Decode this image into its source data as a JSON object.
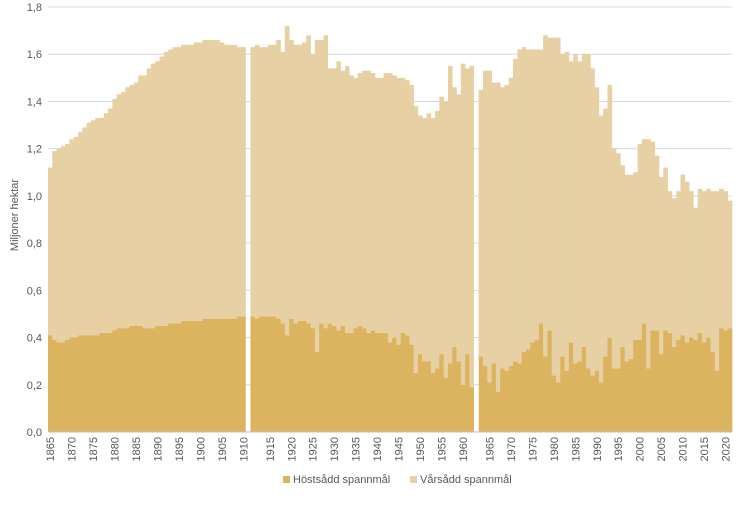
{
  "colors": {
    "host": "#DCB45F",
    "var": "#E6D0A4",
    "grid": "#D9D9D9",
    "axis": "#BFBFBF",
    "text": "#595959"
  },
  "chart_data": {
    "type": "bar",
    "stacked": true,
    "title": "",
    "xlabel": "",
    "ylabel": "Miljoner hektar",
    "ylim": [
      0,
      1.8
    ],
    "y_ticks": [
      "0,0",
      "0,2",
      "0,4",
      "0,6",
      "0,8",
      "1,0",
      "1,2",
      "1,4",
      "1,6",
      "1,8"
    ],
    "x_tick_labels": [
      "1865",
      "1870",
      "1875",
      "1880",
      "1885",
      "1890",
      "1895",
      "1900",
      "1905",
      "1910",
      "1915",
      "1920",
      "1925",
      "1930",
      "1935",
      "1940",
      "1945",
      "1950",
      "1955",
      "1960",
      "1965",
      "1970",
      "1975",
      "1980",
      "1985",
      "1990",
      "1995",
      "2000",
      "2005",
      "2010",
      "2015",
      "2020"
    ],
    "x_start": 1865,
    "x_end": 2021,
    "gaps_after": [
      1910,
      1962
    ],
    "legend_position": "bottom",
    "grid": true,
    "series": [
      {
        "name": "Höstsådd spannmål",
        "color": "#DCB45F",
        "values": [
          0.41,
          0.39,
          0.38,
          0.38,
          0.39,
          0.4,
          0.4,
          0.41,
          0.41,
          0.41,
          0.41,
          0.41,
          0.42,
          0.42,
          0.42,
          0.43,
          0.44,
          0.44,
          0.44,
          0.45,
          0.45,
          0.45,
          0.44,
          0.44,
          0.44,
          0.45,
          0.45,
          0.45,
          0.46,
          0.46,
          0.46,
          0.47,
          0.47,
          0.47,
          0.47,
          0.47,
          0.48,
          0.48,
          0.48,
          0.48,
          0.48,
          0.48,
          0.48,
          0.48,
          0.49,
          0.49,
          0.49,
          0.48,
          0.49,
          0.49,
          0.49,
          0.49,
          0.48,
          0.46,
          0.41,
          0.48,
          0.46,
          0.47,
          0.47,
          0.46,
          0.44,
          0.34,
          0.46,
          0.44,
          0.46,
          0.45,
          0.43,
          0.45,
          0.42,
          0.42,
          0.44,
          0.45,
          0.44,
          0.42,
          0.43,
          0.42,
          0.42,
          0.42,
          0.38,
          0.4,
          0.37,
          0.42,
          0.41,
          0.37,
          0.25,
          0.33,
          0.3,
          0.3,
          0.25,
          0.27,
          0.33,
          0.23,
          0.29,
          0.36,
          0.3,
          0.2,
          0.33,
          0.19,
          0.32,
          0.28,
          0.21,
          0.29,
          0.17,
          0.27,
          0.26,
          0.28,
          0.3,
          0.29,
          0.34,
          0.35,
          0.38,
          0.39,
          0.46,
          0.32,
          0.43,
          0.24,
          0.21,
          0.32,
          0.26,
          0.38,
          0.29,
          0.3,
          0.36,
          0.27,
          0.24,
          0.26,
          0.21,
          0.32,
          0.4,
          0.27,
          0.27,
          0.36,
          0.3,
          0.31,
          0.39,
          0.39,
          0.46,
          0.27,
          0.43,
          0.43,
          0.33,
          0.43,
          0.42,
          0.36,
          0.39,
          0.41,
          0.38,
          0.4,
          0.39,
          0.42,
          0.38,
          0.4,
          0.34,
          0.26,
          0.44,
          0.43,
          0.44,
          0.33,
          0.48,
          0.46
        ]
      },
      {
        "name": "Vårsådd spannmål",
        "color": "#E6D0A4",
        "values": [
          0.71,
          0.8,
          0.82,
          0.83,
          0.83,
          0.84,
          0.85,
          0.86,
          0.88,
          0.9,
          0.91,
          0.92,
          0.91,
          0.93,
          0.95,
          0.98,
          0.99,
          1.0,
          1.02,
          1.02,
          1.03,
          1.06,
          1.07,
          1.1,
          1.12,
          1.12,
          1.14,
          1.16,
          1.16,
          1.17,
          1.17,
          1.17,
          1.17,
          1.17,
          1.18,
          1.18,
          1.18,
          1.18,
          1.18,
          1.18,
          1.17,
          1.16,
          1.16,
          1.16,
          1.14,
          1.14,
          1.14,
          1.16,
          1.14,
          1.14,
          1.15,
          1.15,
          1.18,
          1.15,
          1.31,
          1.18,
          1.18,
          1.17,
          1.18,
          1.22,
          1.16,
          1.32,
          1.2,
          1.24,
          1.08,
          1.09,
          1.14,
          1.08,
          1.13,
          1.09,
          1.06,
          1.07,
          1.09,
          1.11,
          1.09,
          1.08,
          1.08,
          1.1,
          1.14,
          1.11,
          1.13,
          1.08,
          1.08,
          1.1,
          1.13,
          1.01,
          1.03,
          1.05,
          1.08,
          1.09,
          1.09,
          1.17,
          1.26,
          1.1,
          1.13,
          1.36,
          1.21,
          1.36,
          1.13,
          1.25,
          1.32,
          1.19,
          1.31,
          1.19,
          1.21,
          1.22,
          1.28,
          1.33,
          1.29,
          1.27,
          1.24,
          1.23,
          1.16,
          1.36,
          1.24,
          1.43,
          1.46,
          1.28,
          1.35,
          1.19,
          1.31,
          1.27,
          1.24,
          1.33,
          1.3,
          1.2,
          1.13,
          1.05,
          1.07,
          0.93,
          0.91,
          0.77,
          0.79,
          0.78,
          0.71,
          0.83,
          0.78,
          0.97,
          0.8,
          0.74,
          0.75,
          0.69,
          0.6,
          0.63,
          0.63,
          0.68,
          0.68,
          0.62,
          0.56,
          0.61,
          0.64,
          0.63,
          0.68,
          0.76,
          0.59,
          0.59,
          0.54,
          0.66,
          0.52,
          0.54
        ]
      }
    ]
  }
}
